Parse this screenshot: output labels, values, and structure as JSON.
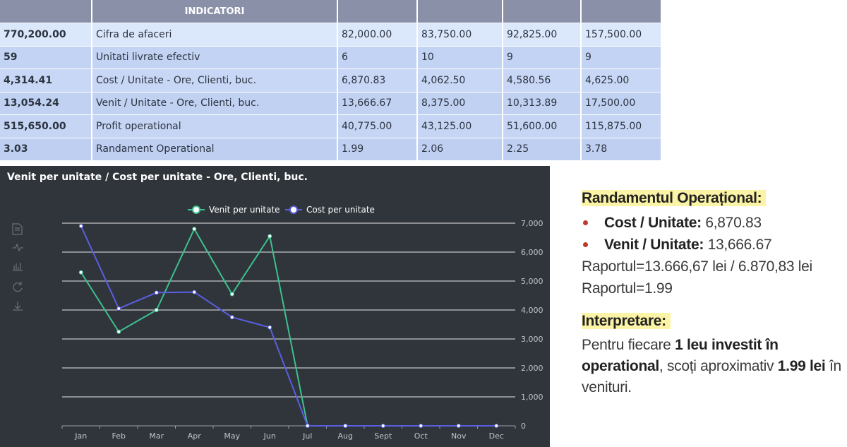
{
  "table": {
    "header": {
      "indicatori": "INDICATORI"
    },
    "rows": [
      {
        "total": "770,200.00",
        "name": "Cifra de afaceri",
        "v1": "82,000.00",
        "v2": "83,750.00",
        "v3": "92,825.00",
        "v4": "157,500.00"
      },
      {
        "total": "59",
        "name": "Unitati livrate efectiv",
        "v1": "6",
        "v2": "10",
        "v3": "9",
        "v4": "9"
      },
      {
        "total": "4,314.41",
        "name": "Cost / Unitate - Ore, Clienti, buc.",
        "v1": "6,870.83",
        "v2": "4,062.50",
        "v3": "4,580.56",
        "v4": "4,625.00"
      },
      {
        "total": "13,054.24",
        "name": "Venit / Unitate - Ore, Clienti, buc.",
        "v1": "13,666.67",
        "v2": "8,375.00",
        "v3": "10,313.89",
        "v4": "17,500.00"
      },
      {
        "total": "515,650.00",
        "name": "Profit operational",
        "v1": "40,775.00",
        "v2": "43,125.00",
        "v3": "51,600.00",
        "v4": "115,875.00"
      },
      {
        "total": "3.03",
        "name": "Randament Operational",
        "v1": "1.99",
        "v2": "2.06",
        "v3": "2.25",
        "v4": "3.78"
      }
    ]
  },
  "chart_data": {
    "type": "line",
    "title": "Venit per unitate / Cost per unitate - Ore, Clienti, buc.",
    "categories": [
      "Jan",
      "Feb",
      "Mar",
      "Apr",
      "May",
      "Jun",
      "Jul",
      "Aug",
      "Sept",
      "Oct",
      "Nov",
      "Dec"
    ],
    "series": [
      {
        "name": "Venit per unitate",
        "color": "#3ec08e",
        "values": [
          5300,
          3250,
          4000,
          6800,
          4550,
          6550,
          0,
          0,
          0,
          0,
          0,
          0
        ]
      },
      {
        "name": "Cost per unitate",
        "color": "#5a5ee0",
        "values": [
          6900,
          4050,
          4600,
          4620,
          3750,
          3400,
          0,
          0,
          0,
          0,
          0,
          0
        ]
      }
    ],
    "y_ticks": [
      "0",
      "1,000",
      "2,000",
      "3,000",
      "4,000",
      "5,000",
      "6,000",
      "7,000"
    ],
    "ylim": [
      0,
      7000
    ],
    "legend_position": "top",
    "y_axis_side": "right",
    "grid": true,
    "toolbox_icons": [
      "data-view-icon",
      "line-chart-icon",
      "bar-chart-icon",
      "refresh-icon",
      "download-icon"
    ]
  },
  "notes": {
    "heading1": "Randamentul Operațional:",
    "cost_label": "Cost / Unitate:",
    "cost_value": "6,870.83",
    "venit_label": "Venit / Unitate:",
    "venit_value": "13,666.67",
    "ratio_line": "Raportul=13.666,67 lei / 6.870,83 lei",
    "ratio_result": "Raportul=1.99",
    "heading2": "Interpretare:",
    "interp_part1": "Pentru fiecare ",
    "interp_bold1": "1 leu investit în operational",
    "interp_part2": ", scoți aproximativ ",
    "interp_bold2": "1.99 lei",
    "interp_part3": " în venituri."
  }
}
